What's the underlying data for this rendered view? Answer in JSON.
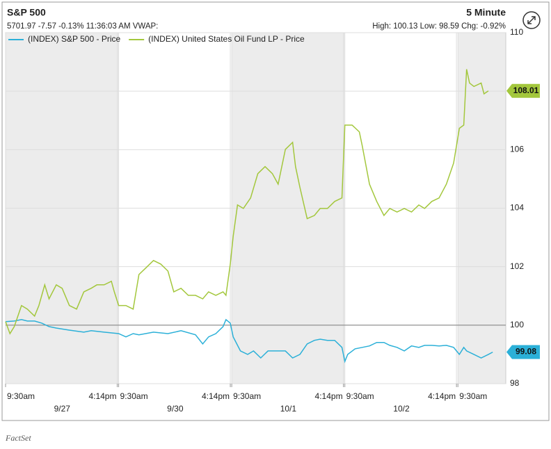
{
  "chart_data": {
    "type": "line",
    "title": "S&P 500",
    "subtitle": "5701.97 -7.57 -0.13% 11:36:03 AM VWAP:",
    "interval": "5 Minute",
    "stats": "High: 100.13 Low: 98.59 Chg: -0.92%",
    "source": "FactSet",
    "xlim": [
      0,
      345
    ],
    "xticks": [
      {
        "value": 0,
        "label": "9:30am"
      },
      {
        "value": 77,
        "label": "4:14pm"
      },
      {
        "value": 78,
        "label": "9:30am"
      },
      {
        "value": 155,
        "label": "4:14pm"
      },
      {
        "value": 156,
        "label": "9:30am"
      },
      {
        "value": 233,
        "label": "4:14pm"
      },
      {
        "value": 234,
        "label": "9:30am"
      },
      {
        "value": 311,
        "label": "4:14pm"
      },
      {
        "value": 312,
        "label": "9:30am"
      }
    ],
    "date_ticks": [
      {
        "value": 39,
        "label": "9/27"
      },
      {
        "value": 117,
        "label": "9/30"
      },
      {
        "value": 195,
        "label": "10/1"
      },
      {
        "value": 273,
        "label": "10/2"
      }
    ],
    "ylim": [
      98,
      110
    ],
    "yticks": [
      98,
      100,
      102,
      104,
      106,
      108,
      110
    ],
    "reference_line": 100,
    "grid": true,
    "series": [
      {
        "name": "(INDEX) S&P 500 - Price",
        "color": "#2bb0d8",
        "x": [
          0,
          6,
          11,
          15,
          20,
          25,
          30,
          35,
          44,
          54,
          59,
          68,
          78,
          83,
          88,
          92,
          102,
          112,
          121,
          131,
          136,
          140,
          145,
          150,
          152,
          155,
          157,
          162,
          167,
          171,
          176,
          181,
          186,
          193,
          198,
          203,
          208,
          213,
          217,
          222,
          227,
          232,
          234,
          236,
          241,
          246,
          251,
          256,
          261,
          265,
          270,
          275,
          280,
          285,
          289,
          294,
          299,
          304,
          309,
          313,
          316,
          318,
          323,
          328,
          333,
          336
        ],
        "values": [
          100.12,
          100.14,
          100.19,
          100.14,
          100.14,
          100.07,
          99.95,
          99.9,
          99.83,
          99.76,
          99.81,
          99.76,
          99.71,
          99.6,
          99.71,
          99.67,
          99.76,
          99.71,
          99.81,
          99.67,
          99.36,
          99.6,
          99.71,
          99.95,
          100.19,
          100.07,
          99.6,
          99.12,
          99.0,
          99.12,
          98.88,
          99.12,
          99.12,
          99.12,
          98.88,
          99.0,
          99.36,
          99.48,
          99.52,
          99.48,
          99.48,
          99.24,
          98.76,
          99.0,
          99.19,
          99.24,
          99.29,
          99.41,
          99.41,
          99.31,
          99.24,
          99.12,
          99.29,
          99.24,
          99.31,
          99.31,
          99.29,
          99.31,
          99.24,
          99.0,
          99.24,
          99.12,
          99.0,
          98.88,
          99.0,
          99.08
        ]
      },
      {
        "name": "(INDEX) United States Oil Fund LP - Price",
        "color": "#a3c73c",
        "x": [
          0,
          3,
          6,
          11,
          15,
          20,
          23,
          27,
          30,
          35,
          39,
          44,
          49,
          54,
          59,
          63,
          68,
          73,
          75,
          78,
          83,
          88,
          92,
          97,
          102,
          107,
          112,
          116,
          121,
          126,
          131,
          136,
          140,
          145,
          150,
          152,
          155,
          157,
          160,
          164,
          169,
          174,
          179,
          184,
          188,
          193,
          198,
          200,
          203,
          208,
          213,
          217,
          222,
          227,
          232,
          234,
          239,
          244,
          246,
          251,
          256,
          261,
          265,
          270,
          275,
          280,
          285,
          289,
          294,
          299,
          304,
          309,
          313,
          316,
          318,
          320,
          323,
          328,
          330,
          333
        ],
        "values": [
          100.12,
          99.71,
          99.95,
          100.67,
          100.55,
          100.31,
          100.67,
          101.38,
          100.9,
          101.38,
          101.26,
          100.67,
          100.55,
          101.14,
          101.26,
          101.38,
          101.38,
          101.5,
          101.14,
          100.67,
          100.67,
          100.55,
          101.73,
          101.97,
          102.21,
          102.09,
          101.85,
          101.14,
          101.26,
          101.02,
          101.02,
          100.9,
          101.14,
          101.02,
          101.14,
          101.02,
          102.09,
          103.04,
          104.11,
          103.99,
          104.35,
          105.18,
          105.42,
          105.18,
          104.82,
          106.01,
          106.25,
          105.42,
          104.71,
          103.64,
          103.75,
          103.99,
          103.99,
          104.23,
          104.35,
          106.84,
          106.84,
          106.61,
          106.13,
          104.82,
          104.23,
          103.75,
          103.99,
          103.87,
          103.99,
          103.87,
          104.11,
          103.99,
          104.23,
          104.35,
          104.82,
          105.54,
          106.73,
          106.84,
          108.75,
          108.28,
          108.16,
          108.28,
          107.91,
          108.01
        ]
      }
    ]
  }
}
